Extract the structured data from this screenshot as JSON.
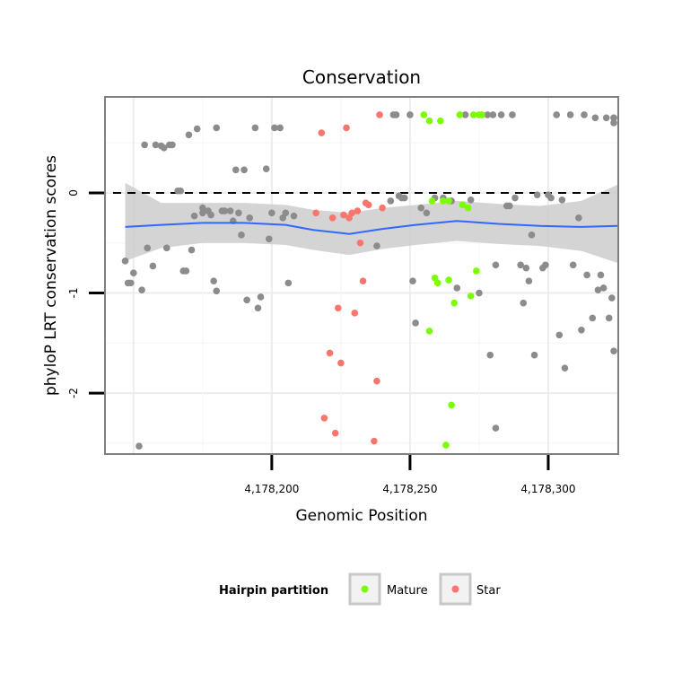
{
  "chart_data": {
    "type": "scatter",
    "title": "Conservation",
    "xlabel": "Genomic Position",
    "ylabel": "phyloP LRT conservation scores",
    "xlim": [
      4178140,
      4178325
    ],
    "ylim": [
      -2.6,
      0.95
    ],
    "x_ticks": [
      {
        "value": 4178200,
        "label": "4,178,200"
      },
      {
        "value": 4178250,
        "label": "4,178,250"
      },
      {
        "value": 4178300,
        "label": "4,178,300"
      }
    ],
    "y_ticks": [
      {
        "value": 0,
        "label": "0"
      },
      {
        "value": -1,
        "label": "-1"
      },
      {
        "value": -2,
        "label": "-2"
      }
    ],
    "reference_line": {
      "y": 0,
      "style": "dashed"
    },
    "legend": {
      "title": "Hairpin partition",
      "position": "bottom",
      "entries": [
        {
          "label": "Mature",
          "color": "#7CFC00"
        },
        {
          "label": "Star",
          "color": "#F8766D"
        }
      ]
    },
    "colors": {
      "other": "#8c8c8c",
      "Mature": "#7CFC00",
      "Star": "#F8766D",
      "smooth": "#3366FF",
      "band": "#cccccc"
    },
    "smooth": {
      "x": [
        4178147,
        4178160,
        4178175,
        4178190,
        4178205,
        4178215,
        4178228,
        4178240,
        4178252,
        4178267,
        4178282,
        4178297,
        4178312,
        4178325
      ],
      "y": [
        -0.34,
        -0.32,
        -0.3,
        -0.3,
        -0.32,
        -0.37,
        -0.41,
        -0.36,
        -0.32,
        -0.28,
        -0.31,
        -0.33,
        -0.34,
        -0.33
      ],
      "lower": [
        -0.68,
        -0.55,
        -0.5,
        -0.5,
        -0.52,
        -0.57,
        -0.62,
        -0.56,
        -0.52,
        -0.48,
        -0.51,
        -0.53,
        -0.58,
        -0.7
      ],
      "upper": [
        0.1,
        -0.1,
        -0.1,
        -0.1,
        -0.12,
        -0.17,
        -0.2,
        -0.15,
        -0.12,
        -0.08,
        -0.11,
        -0.13,
        -0.08,
        0.08
      ]
    },
    "series": [
      {
        "name": "Other",
        "points": [
          [
            4178147,
            -0.68
          ],
          [
            4178148,
            -0.9
          ],
          [
            4178149,
            -0.9
          ],
          [
            4178150,
            -0.8
          ],
          [
            4178152,
            -2.53
          ],
          [
            4178153,
            -0.97
          ],
          [
            4178154,
            0.48
          ],
          [
            4178155,
            -0.55
          ],
          [
            4178157,
            -0.73
          ],
          [
            4178158,
            0.48
          ],
          [
            4178160,
            0.47
          ],
          [
            4178161,
            0.45
          ],
          [
            4178162,
            -0.55
          ],
          [
            4178163,
            0.48
          ],
          [
            4178164,
            0.48
          ],
          [
            4178166,
            0.02
          ],
          [
            4178167,
            0.02
          ],
          [
            4178168,
            -0.78
          ],
          [
            4178169,
            -0.78
          ],
          [
            4178170,
            0.58
          ],
          [
            4178171,
            -0.57
          ],
          [
            4178172,
            -0.23
          ],
          [
            4178173,
            0.64
          ],
          [
            4178175,
            -0.2
          ],
          [
            4178175,
            -0.15
          ],
          [
            4178177,
            -0.18
          ],
          [
            4178178,
            -0.22
          ],
          [
            4178179,
            -0.88
          ],
          [
            4178180,
            -0.98
          ],
          [
            4178180,
            0.65
          ],
          [
            4178182,
            -0.18
          ],
          [
            4178183,
            -0.18
          ],
          [
            4178185,
            -0.18
          ],
          [
            4178186,
            -0.28
          ],
          [
            4178187,
            0.23
          ],
          [
            4178188,
            -0.2
          ],
          [
            4178189,
            -0.42
          ],
          [
            4178190,
            0.23
          ],
          [
            4178191,
            -1.07
          ],
          [
            4178192,
            -0.25
          ],
          [
            4178194,
            0.65
          ],
          [
            4178195,
            -1.15
          ],
          [
            4178196,
            -1.04
          ],
          [
            4178198,
            0.24
          ],
          [
            4178199,
            -0.46
          ],
          [
            4178200,
            -0.2
          ],
          [
            4178201,
            0.65
          ],
          [
            4178203,
            0.65
          ],
          [
            4178204,
            -0.25
          ],
          [
            4178205,
            -0.2
          ],
          [
            4178206,
            -0.9
          ],
          [
            4178208,
            -0.23
          ],
          [
            4178238,
            -0.53
          ],
          [
            4178243,
            -0.08
          ],
          [
            4178244,
            0.78
          ],
          [
            4178245,
            0.78
          ],
          [
            4178246,
            -0.03
          ],
          [
            4178247,
            -0.05
          ],
          [
            4178248,
            -0.05
          ],
          [
            4178250,
            0.78
          ],
          [
            4178251,
            -0.88
          ],
          [
            4178252,
            -1.3
          ],
          [
            4178254,
            -0.15
          ],
          [
            4178256,
            -0.2
          ],
          [
            4178259,
            -0.05
          ],
          [
            4178262,
            -0.05
          ],
          [
            4178265,
            -0.08
          ],
          [
            4178267,
            -0.95
          ],
          [
            4178270,
            0.78
          ],
          [
            4178272,
            -0.07
          ],
          [
            4178275,
            -1.0
          ],
          [
            4178278,
            0.78
          ],
          [
            4178279,
            -1.62
          ],
          [
            4178280,
            0.78
          ],
          [
            4178281,
            -0.72
          ],
          [
            4178281,
            -2.35
          ],
          [
            4178283,
            0.78
          ],
          [
            4178285,
            -0.13
          ],
          [
            4178286,
            -0.13
          ],
          [
            4178287,
            0.78
          ],
          [
            4178288,
            -0.05
          ],
          [
            4178290,
            -0.72
          ],
          [
            4178291,
            -1.1
          ],
          [
            4178292,
            -0.75
          ],
          [
            4178293,
            -0.88
          ],
          [
            4178294,
            -0.42
          ],
          [
            4178295,
            -1.62
          ],
          [
            4178296,
            -0.02
          ],
          [
            4178298,
            -0.75
          ],
          [
            4178299,
            -0.72
          ],
          [
            4178300,
            -0.02
          ],
          [
            4178301,
            -0.05
          ],
          [
            4178303,
            0.78
          ],
          [
            4178304,
            -1.42
          ],
          [
            4178305,
            -0.07
          ],
          [
            4178306,
            -1.75
          ],
          [
            4178308,
            0.78
          ],
          [
            4178309,
            -0.72
          ],
          [
            4178311,
            -0.25
          ],
          [
            4178312,
            -1.37
          ],
          [
            4178313,
            0.78
          ],
          [
            4178314,
            -0.82
          ],
          [
            4178316,
            -1.25
          ],
          [
            4178317,
            0.75
          ],
          [
            4178318,
            -0.97
          ],
          [
            4178319,
            -0.82
          ],
          [
            4178320,
            -0.95
          ],
          [
            4178321,
            0.75
          ],
          [
            4178322,
            -1.25
          ],
          [
            4178323,
            -1.05
          ],
          [
            4178324,
            0.75
          ],
          [
            4178325,
            0.7
          ],
          [
            4178326,
            0.75
          ],
          [
            4178327,
            -1.58
          ]
        ]
      },
      {
        "name": "Mature",
        "points": [
          [
            4178255,
            0.78
          ],
          [
            4178257,
            0.72
          ],
          [
            4178257,
            -1.38
          ],
          [
            4178258,
            -0.08
          ],
          [
            4178259,
            -0.85
          ],
          [
            4178260,
            -0.9
          ],
          [
            4178261,
            0.72
          ],
          [
            4178262,
            -0.08
          ],
          [
            4178263,
            -2.52
          ],
          [
            4178264,
            -0.87
          ],
          [
            4178264,
            -0.08
          ],
          [
            4178265,
            -2.12
          ],
          [
            4178266,
            -1.1
          ],
          [
            4178268,
            0.78
          ],
          [
            4178269,
            -0.12
          ],
          [
            4178271,
            -0.15
          ],
          [
            4178272,
            -1.03
          ],
          [
            4178273,
            0.78
          ],
          [
            4178274,
            -0.78
          ],
          [
            4178275,
            0.78
          ],
          [
            4178276,
            0.78
          ]
        ]
      },
      {
        "name": "Star",
        "points": [
          [
            4178216,
            -0.2
          ],
          [
            4178218,
            0.6
          ],
          [
            4178219,
            -2.25
          ],
          [
            4178221,
            -1.6
          ],
          [
            4178222,
            -0.25
          ],
          [
            4178223,
            -2.4
          ],
          [
            4178224,
            -1.15
          ],
          [
            4178225,
            -1.7
          ],
          [
            4178226,
            -0.22
          ],
          [
            4178227,
            0.65
          ],
          [
            4178228,
            -0.25
          ],
          [
            4178229,
            -0.2
          ],
          [
            4178230,
            -1.2
          ],
          [
            4178231,
            -0.18
          ],
          [
            4178232,
            -0.5
          ],
          [
            4178233,
            -0.88
          ],
          [
            4178234,
            -0.1
          ],
          [
            4178235,
            -0.12
          ],
          [
            4178237,
            -2.48
          ],
          [
            4178238,
            -1.88
          ],
          [
            4178239,
            0.78
          ],
          [
            4178240,
            -0.15
          ]
        ]
      }
    ]
  }
}
